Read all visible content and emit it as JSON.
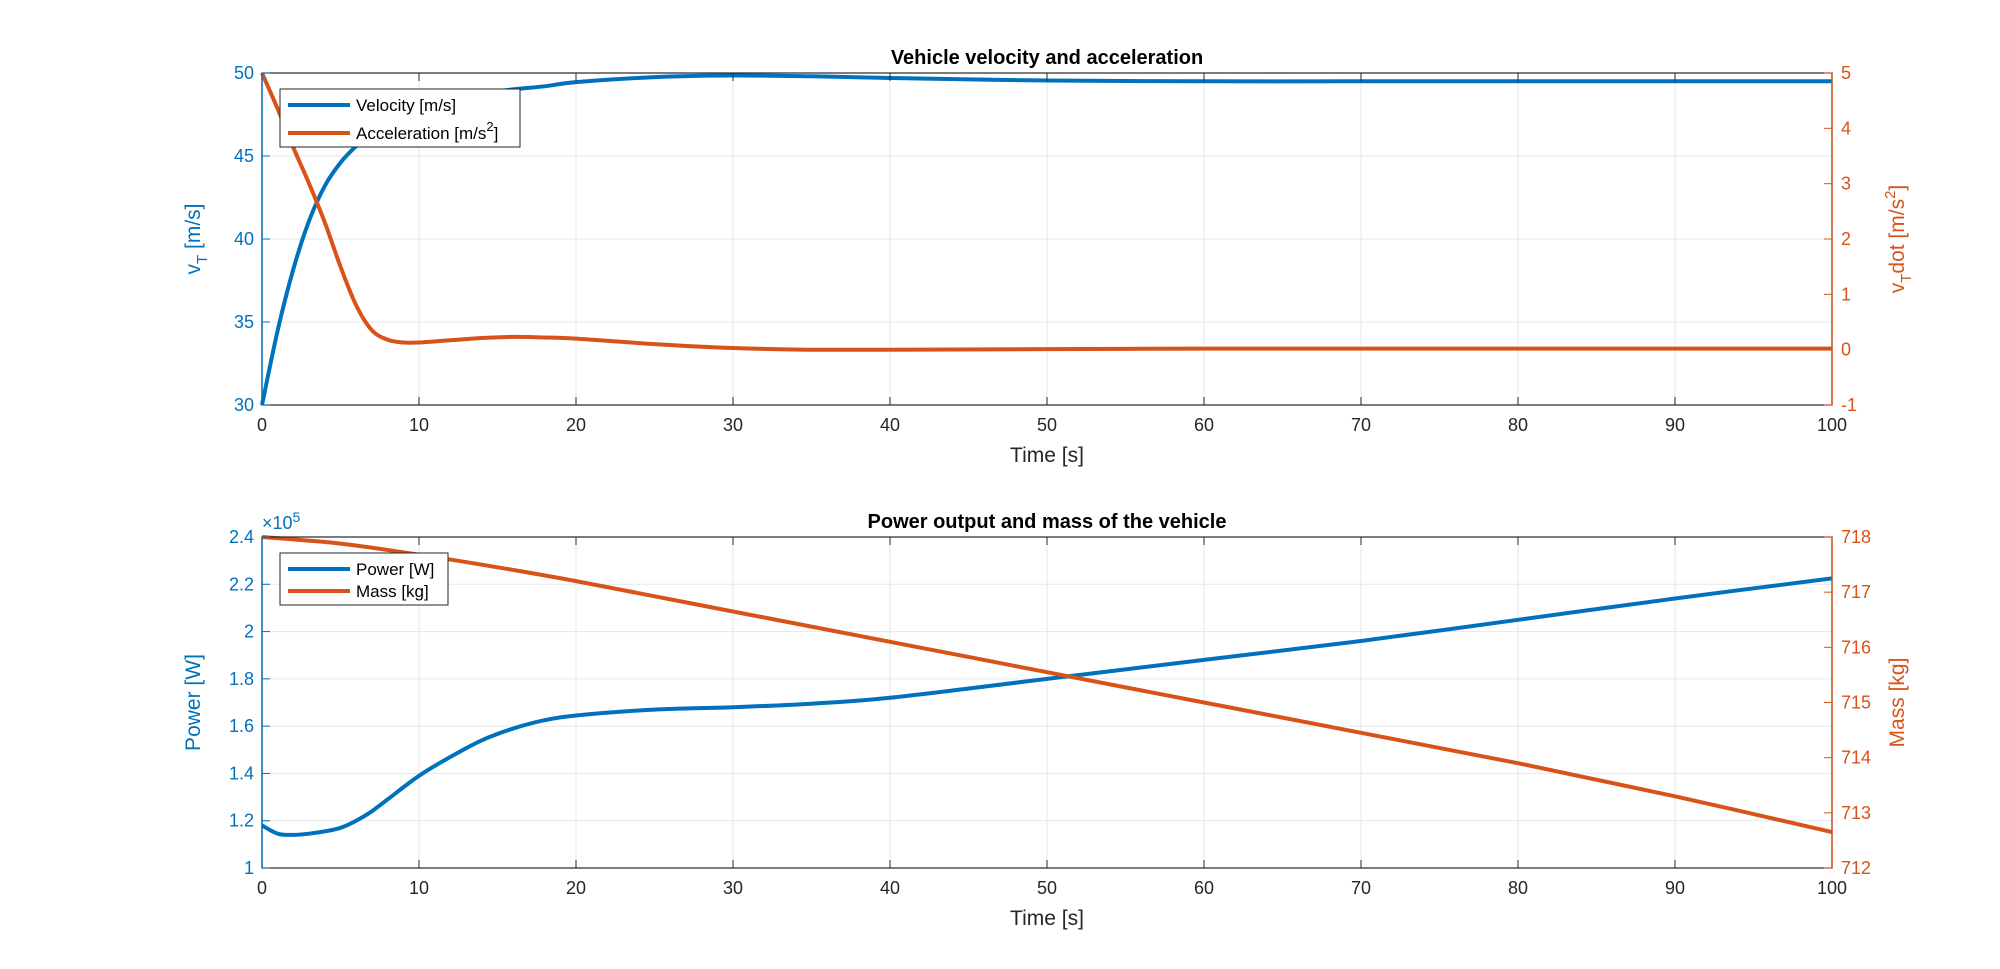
{
  "colors": {
    "left": "#0072BD",
    "right": "#D95319",
    "axis": "#262626"
  },
  "chart_data": [
    {
      "type": "line",
      "title": "Vehicle velocity and acceleration",
      "xlabel": "Time [s]",
      "ylabel_left": {
        "main": "v",
        "sub": "T",
        "rest": " [m/s]"
      },
      "ylabel_right": {
        "main": "v",
        "sub": "T",
        "mid": "dot [m/s",
        "sup": "2",
        "end": "]"
      },
      "xlim": [
        0,
        100
      ],
      "ylim_left": [
        30,
        50
      ],
      "ylim_right": [
        -1,
        5
      ],
      "xticks": [
        "0",
        "10",
        "20",
        "30",
        "40",
        "50",
        "60",
        "70",
        "80",
        "90",
        "100"
      ],
      "yticks_left": [
        "30",
        "35",
        "40",
        "45",
        "50"
      ],
      "yticks_right": [
        "-1",
        "0",
        "1",
        "2",
        "3",
        "4",
        "5"
      ],
      "grid": true,
      "legend_position": "top-left",
      "series": [
        {
          "name": "Velocity [m/s]",
          "axis": "left",
          "color": "#0072BD",
          "x": [
            0,
            1,
            2,
            3,
            4,
            5,
            6,
            7,
            8,
            10,
            12,
            15,
            18,
            20,
            25,
            30,
            35,
            40,
            50,
            60,
            70,
            80,
            90,
            100
          ],
          "y": [
            30,
            34.5,
            38.2,
            41.1,
            43.2,
            44.6,
            45.6,
            46.4,
            47.0,
            47.9,
            48.4,
            48.9,
            49.2,
            49.45,
            49.75,
            49.85,
            49.8,
            49.7,
            49.55,
            49.5,
            49.5,
            49.5,
            49.5,
            49.5
          ]
        },
        {
          "name": "Acceleration [m/s2]",
          "legend": {
            "text": "Acceleration [m/s",
            "sup": "2",
            "end": "]"
          },
          "axis": "right",
          "color": "#D95319",
          "x": [
            0,
            1,
            2,
            3,
            4,
            5,
            6,
            7,
            8,
            9,
            10,
            12,
            14,
            16,
            18,
            20,
            25,
            30,
            35,
            40,
            50,
            60,
            70,
            80,
            90,
            100
          ],
          "y": [
            5.0,
            4.35,
            3.65,
            3.0,
            2.3,
            1.5,
            0.8,
            0.35,
            0.18,
            0.13,
            0.13,
            0.17,
            0.21,
            0.23,
            0.22,
            0.2,
            0.1,
            0.03,
            0.0,
            0.0,
            0.01,
            0.02,
            0.02,
            0.02,
            0.02,
            0.02
          ]
        }
      ]
    },
    {
      "type": "line",
      "title": "Power output and mass of the vehicle",
      "xlabel": "Time [s]",
      "ylabel_left": "Power [W]",
      "ylabel_right": "Mass [kg]",
      "exponent_left": {
        "base": "×10",
        "sup": "5"
      },
      "xlim": [
        0,
        100
      ],
      "ylim_left": [
        1.0,
        2.4
      ],
      "ylim_right": [
        712,
        718
      ],
      "xticks": [
        "0",
        "10",
        "20",
        "30",
        "40",
        "50",
        "60",
        "70",
        "80",
        "90",
        "100"
      ],
      "yticks_left": [
        "1",
        "1.2",
        "1.4",
        "1.6",
        "1.8",
        "2",
        "2.2",
        "2.4"
      ],
      "yticks_right": [
        "712",
        "713",
        "714",
        "715",
        "716",
        "717",
        "718"
      ],
      "grid": true,
      "legend_position": "top-left",
      "series": [
        {
          "name": "Power [W]",
          "axis": "left",
          "color": "#0072BD",
          "x": [
            0,
            1,
            2,
            3,
            4,
            5,
            6,
            7,
            8,
            10,
            12,
            14,
            16,
            18,
            20,
            25,
            30,
            35,
            40,
            50,
            60,
            70,
            80,
            90,
            100
          ],
          "y": [
            1.18,
            1.145,
            1.14,
            1.145,
            1.155,
            1.17,
            1.2,
            1.24,
            1.29,
            1.39,
            1.47,
            1.54,
            1.59,
            1.625,
            1.645,
            1.67,
            1.68,
            1.695,
            1.72,
            1.8,
            1.88,
            1.96,
            2.05,
            2.14,
            2.225
          ]
        },
        {
          "name": "Mass [kg]",
          "axis": "right",
          "color": "#D95319",
          "x": [
            0,
            5,
            10,
            15,
            20,
            30,
            40,
            50,
            60,
            70,
            80,
            90,
            100
          ],
          "y": [
            718.0,
            717.88,
            717.68,
            717.45,
            717.2,
            716.65,
            716.1,
            715.55,
            715.0,
            714.45,
            713.9,
            713.3,
            712.65
          ]
        }
      ]
    }
  ]
}
